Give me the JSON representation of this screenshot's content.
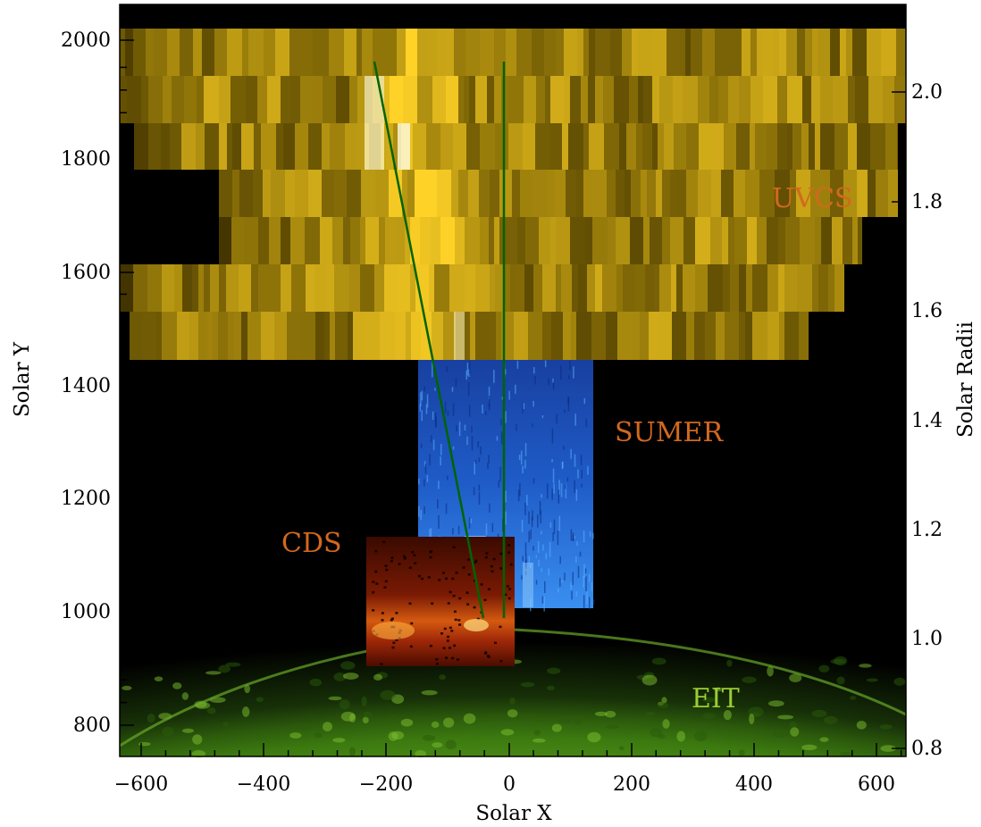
{
  "figure": {
    "xlabel": "Solar X",
    "ylabel": "Solar Y",
    "y2label": "Solar Radii",
    "x_ticks": [
      "−600",
      "−400",
      "−200",
      "0",
      "200",
      "400",
      "600"
    ],
    "y_ticks": [
      "800",
      "1000",
      "1200",
      "1400",
      "1600",
      "1800",
      "2000"
    ],
    "y2_ticks": [
      "0.8",
      "1.0",
      "1.2",
      "1.4",
      "1.6",
      "1.8",
      "2.0"
    ]
  },
  "instruments": {
    "uvcs": "UVCS",
    "sumer": "SUMER",
    "cds": "CDS",
    "eit": "EIT"
  },
  "colors": {
    "uvcs_label": "#d2691e",
    "sumer_label": "#d2691e",
    "cds_label": "#d2691e",
    "eit_label": "#9acd32",
    "line_of_sight": "#006400",
    "eit_disk": "#3a8a10",
    "uvcs_map": "#e0b020",
    "sumer_map": "#2060d0",
    "cds_map": "#b03010"
  },
  "chart_data": {
    "type": "heatmap",
    "xlabel": "Solar X",
    "ylabel": "Solar Y",
    "y2label": "Solar Radii",
    "xlim": [
      -640,
      640
    ],
    "ylim": [
      750,
      2050
    ],
    "y2lim": [
      0.78,
      2.14
    ],
    "x_ticks": [
      -600,
      -400,
      -200,
      0,
      200,
      400,
      600
    ],
    "y_ticks": [
      800,
      1000,
      1200,
      1400,
      1600,
      1800,
      2000
    ],
    "y2_ticks": [
      0.8,
      1.0,
      1.2,
      1.4,
      1.6,
      1.8,
      2.0
    ],
    "grid": false,
    "regions": [
      {
        "name": "UVCS",
        "x": [
          -640,
          640
        ],
        "y": [
          1440,
          2010
        ]
      },
      {
        "name": "SUMER",
        "x": [
          -150,
          135
        ],
        "y": [
          1000,
          1440
        ]
      },
      {
        "name": "CDS",
        "x": [
          -235,
          10
        ],
        "y": [
          900,
          1130
        ]
      },
      {
        "name": "EIT",
        "x": [
          -640,
          640
        ],
        "y": [
          750,
          1000
        ]
      }
    ],
    "lines": [
      {
        "x": [
          -220,
          -45
        ],
        "y": [
          1950,
          985
        ]
      },
      {
        "x": [
          -10,
          -10
        ],
        "y": [
          1950,
          985
        ]
      }
    ]
  }
}
